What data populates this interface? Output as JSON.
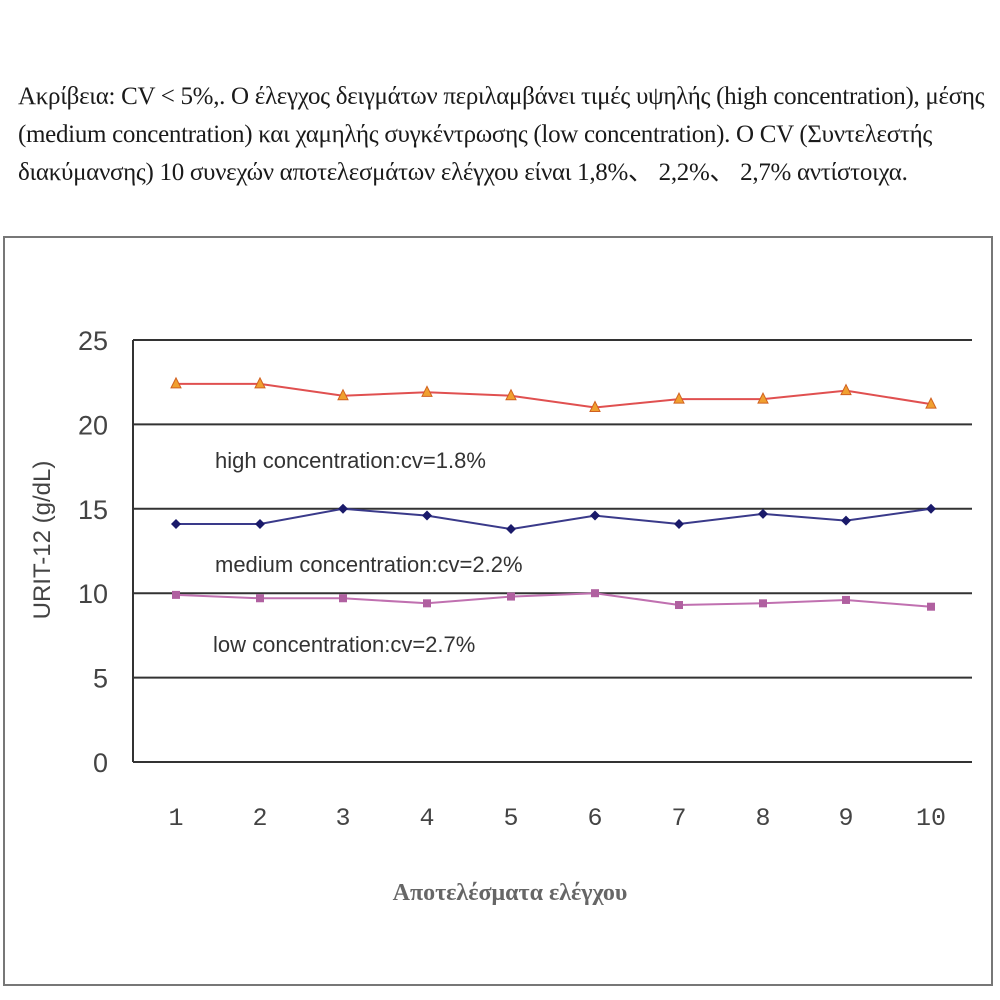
{
  "description": "Ακρίβεια: CV < 5%,. Ο έλεγχος δειγμάτων περιλαμβάνει τιμές υψηλής (high concentration), μέσης (medium concentration) και χαμηλής συγκέντρωσης (low concentration). Ο CV (Συντελεστής διακύμανσης) 10 συνεχών αποτελεσμάτων ελέγχου είναι 1,8%、 2,2%、 2,7% αντίστοιχα.",
  "chart_data": {
    "type": "line",
    "title": "",
    "xlabel": "Αποτελέσματα ελέγχου",
    "ylabel": "URIT-12 (g/dL)",
    "x": [
      1,
      2,
      3,
      4,
      5,
      6,
      7,
      8,
      9,
      10
    ],
    "categories": [
      "1",
      "2",
      "3",
      "4",
      "5",
      "6",
      "7",
      "8",
      "9",
      "10"
    ],
    "ylim": [
      0,
      25
    ],
    "yticks": [
      "0",
      "5",
      "10",
      "15",
      "20",
      "25"
    ],
    "grid": true,
    "legend_position": "none (inline annotations)",
    "series": [
      {
        "name": "high concentration",
        "annotation": "high concentration:cv=1.8%",
        "color": "#e05050",
        "marker": "triangle",
        "marker_color": "#f0a030",
        "values": [
          22.4,
          22.4,
          21.7,
          21.9,
          21.7,
          21.0,
          21.5,
          21.5,
          22.0,
          21.2
        ]
      },
      {
        "name": "medium concentration",
        "annotation": "medium concentration:cv=2.2%",
        "color": "#3a3a8a",
        "marker": "diamond",
        "marker_color": "#1a1a6a",
        "values": [
          14.1,
          14.1,
          15.0,
          14.6,
          13.8,
          14.6,
          14.1,
          14.7,
          14.3,
          15.0
        ]
      },
      {
        "name": "low concentration",
        "annotation": "low concentration:cv=2.7%",
        "color": "#c070b0",
        "marker": "square",
        "marker_color": "#b060a0",
        "values": [
          9.9,
          9.7,
          9.7,
          9.4,
          9.8,
          10.0,
          9.3,
          9.4,
          9.6,
          9.2
        ]
      }
    ]
  }
}
